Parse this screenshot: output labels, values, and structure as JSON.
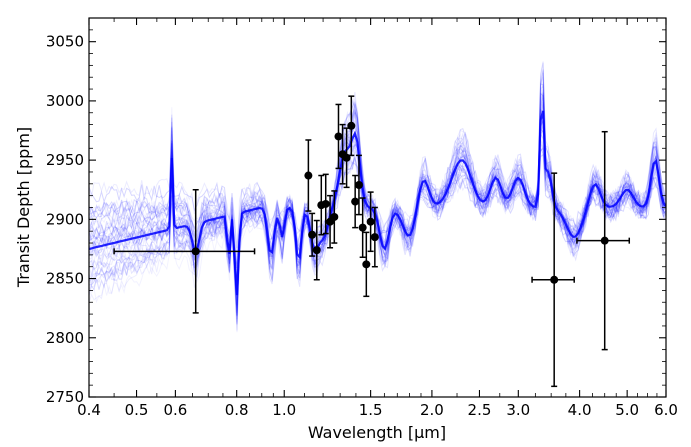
{
  "chart_data": {
    "type": "scatter",
    "xlabel_prefix": "Wavelength [",
    "xlabel_unit": "μm",
    "xlabel_suffix": "]",
    "ylabel": "Transit Depth [ppm]",
    "x_scale": "log",
    "xlim": [
      0.4,
      6.0
    ],
    "ylim": [
      2750,
      3070
    ],
    "x_ticks": [
      {
        "value": 0.4,
        "label": "0.4"
      },
      {
        "value": 0.5,
        "label": "0.5"
      },
      {
        "value": 0.6,
        "label": "0.6"
      },
      {
        "value": 0.8,
        "label": "0.8"
      },
      {
        "value": 1.0,
        "label": "1.0"
      },
      {
        "value": 1.5,
        "label": "1.5"
      },
      {
        "value": 2.0,
        "label": "2.0"
      },
      {
        "value": 2.5,
        "label": "2.5"
      },
      {
        "value": 3.0,
        "label": "3.0"
      },
      {
        "value": 4.0,
        "label": "4.0"
      },
      {
        "value": 5.0,
        "label": "5.0"
      },
      {
        "value": 6.0,
        "label": "6.0"
      }
    ],
    "y_ticks": [
      {
        "value": 2750,
        "label": "2750"
      },
      {
        "value": 2800,
        "label": "2800"
      },
      {
        "value": 2850,
        "label": "2850"
      },
      {
        "value": 2900,
        "label": "2900"
      },
      {
        "value": 2950,
        "label": "2950"
      },
      {
        "value": 3000,
        "label": "3000"
      },
      {
        "value": 3050,
        "label": "3050"
      }
    ],
    "grid": false,
    "data_color": "#000000",
    "model_color": "#0000ff",
    "observations": [
      {
        "x": 0.66,
        "y": 2873,
        "xerr_low": 0.21,
        "xerr_high": 0.21,
        "yerr": 52
      },
      {
        "x": 1.12,
        "y": 2937,
        "xerr_low": 0,
        "xerr_high": 0,
        "yerr": 30
      },
      {
        "x": 1.14,
        "y": 2887,
        "xerr_low": 0,
        "xerr_high": 0,
        "yerr": 18
      },
      {
        "x": 1.165,
        "y": 2874,
        "xerr_low": 0,
        "xerr_high": 0,
        "yerr": 25
      },
      {
        "x": 1.19,
        "y": 2912,
        "xerr_low": 0,
        "xerr_high": 0,
        "yerr": 25
      },
      {
        "x": 1.215,
        "y": 2913,
        "xerr_low": 0,
        "xerr_high": 0,
        "yerr": 25
      },
      {
        "x": 1.24,
        "y": 2898,
        "xerr_low": 0,
        "xerr_high": 0,
        "yerr": 22
      },
      {
        "x": 1.265,
        "y": 2902,
        "xerr_low": 0,
        "xerr_high": 0,
        "yerr": 22
      },
      {
        "x": 1.29,
        "y": 2970,
        "xerr_low": 0,
        "xerr_high": 0,
        "yerr": 27
      },
      {
        "x": 1.315,
        "y": 2955,
        "xerr_low": 0,
        "xerr_high": 0,
        "yerr": 25
      },
      {
        "x": 1.34,
        "y": 2952,
        "xerr_low": 0,
        "xerr_high": 0,
        "yerr": 25
      },
      {
        "x": 1.37,
        "y": 2979,
        "xerr_low": 0,
        "xerr_high": 0,
        "yerr": 25
      },
      {
        "x": 1.395,
        "y": 2915,
        "xerr_low": 0,
        "xerr_high": 0,
        "yerr": 22
      },
      {
        "x": 1.42,
        "y": 2929,
        "xerr_low": 0,
        "xerr_high": 0,
        "yerr": 25
      },
      {
        "x": 1.445,
        "y": 2893,
        "xerr_low": 0,
        "xerr_high": 0,
        "yerr": 25
      },
      {
        "x": 1.47,
        "y": 2862,
        "xerr_low": 0,
        "xerr_high": 0,
        "yerr": 27
      },
      {
        "x": 1.5,
        "y": 2898,
        "xerr_low": 0,
        "xerr_high": 0,
        "yerr": 25
      },
      {
        "x": 1.53,
        "y": 2885,
        "xerr_low": 0,
        "xerr_high": 0,
        "yerr": 25
      },
      {
        "x": 3.55,
        "y": 2849,
        "xerr_low": 0.35,
        "xerr_high": 0.35,
        "yerr": 90
      },
      {
        "x": 4.5,
        "y": 2882,
        "xerr_low": 0.55,
        "xerr_high": 0.55,
        "yerr": 92
      }
    ]
  }
}
